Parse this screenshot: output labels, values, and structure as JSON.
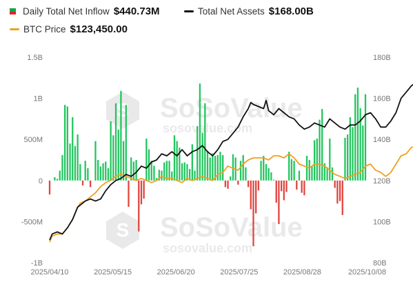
{
  "legend": {
    "inflow": {
      "label": "Daily Total Net Inflow",
      "value": "$440.73M"
    },
    "assets": {
      "label": "Total Net Assets",
      "value": "$168.00B"
    },
    "btc": {
      "label": "BTC Price",
      "value": "$123,450.00"
    }
  },
  "watermark": {
    "brand": "SoSoValue",
    "url": "sosovalue.com"
  },
  "colors": {
    "positive": "#22c55e",
    "negative": "#e0443e",
    "assets_line": "#111111",
    "btc_line": "#f0a020",
    "marker": "#f5c518"
  },
  "chart_data": {
    "type": "bar",
    "x_tick_labels": [
      "2025/04/10",
      "2025/05/15",
      "2025/06/20",
      "2025/07/25",
      "2025/08/28",
      "2025/10/08"
    ],
    "y_left": {
      "ticks": [
        "1.5B",
        "1B",
        "500M",
        "0",
        "-500M",
        "-1B"
      ],
      "range": [
        -1000,
        1500
      ],
      "unit": "M USD"
    },
    "y_right": {
      "ticks": [
        "180B",
        "160B",
        "140B",
        "120B",
        "100B",
        "80B"
      ],
      "range": [
        80,
        180
      ],
      "unit": "B USD"
    },
    "grid": false,
    "series": [
      {
        "name": "Daily Total Net Inflow",
        "kind": "bar",
        "values": [
          -170,
          0,
          40,
          20,
          120,
          310,
          920,
          900,
          450,
          770,
          420,
          560,
          200,
          -60,
          240,
          150,
          -80,
          0,
          480,
          250,
          170,
          210,
          230,
          150,
          720,
          550,
          940,
          620,
          1090,
          480,
          920,
          -320,
          280,
          230,
          250,
          -620,
          -290,
          -220,
          510,
          380,
          240,
          180,
          30,
          130,
          120,
          220,
          240,
          240,
          110,
          550,
          480,
          400,
          210,
          220,
          200,
          140,
          440,
          120,
          660,
          1180,
          580,
          940,
          360,
          280,
          330,
          300,
          310,
          350,
          310,
          -80,
          -100,
          50,
          320,
          280,
          -50,
          240,
          310,
          160,
          -80,
          -350,
          -800,
          -400,
          -120,
          240,
          300,
          200,
          150,
          100,
          10,
          -270,
          -530,
          -130,
          -240,
          -140,
          350,
          260,
          240,
          -110,
          120,
          -150,
          -180,
          300,
          250,
          180,
          490,
          510,
          740,
          870,
          210,
          160,
          510,
          160,
          -90,
          -280,
          -250,
          -420,
          520,
          560,
          770,
          650,
          1050,
          1130,
          880,
          670,
          1050
        ]
      },
      {
        "name": "Total Net Assets",
        "kind": "line",
        "axis": "right",
        "values": [
          [
            0,
            91
          ],
          [
            1,
            94
          ],
          [
            3,
            95
          ],
          [
            5,
            94
          ],
          [
            7,
            97
          ],
          [
            9,
            101
          ],
          [
            11,
            107
          ],
          [
            12,
            108
          ],
          [
            14,
            110
          ],
          [
            16,
            111
          ],
          [
            18,
            110
          ],
          [
            20,
            111
          ],
          [
            22,
            115
          ],
          [
            24,
            118
          ],
          [
            26,
            120
          ],
          [
            28,
            121
          ],
          [
            30,
            123
          ],
          [
            32,
            122
          ],
          [
            34,
            124
          ],
          [
            36,
            127
          ],
          [
            38,
            126
          ],
          [
            40,
            129
          ],
          [
            42,
            130
          ],
          [
            44,
            133
          ],
          [
            46,
            132
          ],
          [
            48,
            134
          ],
          [
            50,
            132
          ],
          [
            52,
            135
          ],
          [
            54,
            132
          ],
          [
            56,
            134
          ],
          [
            58,
            135
          ],
          [
            60,
            137
          ],
          [
            62,
            134
          ],
          [
            64,
            132
          ],
          [
            66,
            135
          ],
          [
            68,
            139
          ],
          [
            70,
            140
          ],
          [
            72,
            143
          ],
          [
            74,
            146
          ],
          [
            76,
            151
          ],
          [
            78,
            155
          ],
          [
            79,
            158
          ],
          [
            80,
            157
          ],
          [
            82,
            156
          ],
          [
            84,
            155
          ],
          [
            85,
            159
          ],
          [
            86,
            154
          ],
          [
            88,
            152
          ],
          [
            90,
            155
          ],
          [
            92,
            153
          ],
          [
            94,
            151
          ],
          [
            96,
            150
          ],
          [
            98,
            147
          ],
          [
            100,
            145
          ],
          [
            102,
            146
          ],
          [
            104,
            148
          ],
          [
            106,
            147
          ],
          [
            108,
            146
          ],
          [
            110,
            150
          ],
          [
            112,
            148
          ],
          [
            114,
            146
          ],
          [
            116,
            145
          ],
          [
            118,
            147
          ],
          [
            120,
            147
          ],
          [
            122,
            149
          ],
          [
            124,
            152
          ],
          [
            126,
            153
          ],
          [
            128,
            150
          ],
          [
            130,
            146
          ],
          [
            132,
            146
          ],
          [
            134,
            149
          ],
          [
            136,
            153
          ],
          [
            138,
            160
          ],
          [
            140,
            163
          ],
          [
            142,
            166
          ],
          [
            144,
            168
          ],
          [
            145,
            167
          ],
          [
            147,
            168
          ]
        ]
      },
      {
        "name": "BTC Price",
        "kind": "line",
        "axis": "right",
        "values": [
          [
            0,
            90
          ],
          [
            1,
            93
          ],
          [
            3,
            94
          ],
          [
            5,
            94
          ],
          [
            7,
            97
          ],
          [
            9,
            101
          ],
          [
            11,
            107
          ],
          [
            12,
            109
          ],
          [
            14,
            110
          ],
          [
            16,
            112
          ],
          [
            18,
            114
          ],
          [
            20,
            117
          ],
          [
            22,
            119
          ],
          [
            24,
            120
          ],
          [
            26,
            122
          ],
          [
            28,
            123
          ],
          [
            30,
            122
          ],
          [
            32,
            121
          ],
          [
            34,
            120
          ],
          [
            36,
            121
          ],
          [
            38,
            120
          ],
          [
            40,
            119
          ],
          [
            42,
            120
          ],
          [
            44,
            122
          ],
          [
            46,
            121
          ],
          [
            48,
            121
          ],
          [
            50,
            120
          ],
          [
            52,
            119
          ],
          [
            54,
            121
          ],
          [
            56,
            120
          ],
          [
            58,
            121
          ],
          [
            60,
            122
          ],
          [
            62,
            121
          ],
          [
            64,
            120
          ],
          [
            66,
            123
          ],
          [
            68,
            124
          ],
          [
            70,
            127
          ],
          [
            72,
            126
          ],
          [
            74,
            125
          ],
          [
            76,
            128
          ],
          [
            78,
            130
          ],
          [
            80,
            131
          ],
          [
            82,
            131
          ],
          [
            84,
            131
          ],
          [
            86,
            130
          ],
          [
            88,
            132
          ],
          [
            90,
            132
          ],
          [
            92,
            131
          ],
          [
            94,
            133
          ],
          [
            96,
            131
          ],
          [
            98,
            128
          ],
          [
            100,
            127
          ],
          [
            102,
            126
          ],
          [
            104,
            128
          ],
          [
            106,
            128
          ],
          [
            108,
            127
          ],
          [
            110,
            125
          ],
          [
            112,
            123
          ],
          [
            114,
            122
          ],
          [
            116,
            121
          ],
          [
            118,
            122
          ],
          [
            120,
            123
          ],
          [
            122,
            124
          ],
          [
            124,
            127
          ],
          [
            126,
            128
          ],
          [
            128,
            125
          ],
          [
            130,
            124
          ],
          [
            132,
            122
          ],
          [
            134,
            124
          ],
          [
            136,
            128
          ],
          [
            138,
            132
          ],
          [
            140,
            133
          ],
          [
            142,
            136
          ],
          [
            144,
            137
          ],
          [
            147,
            135
          ]
        ]
      }
    ],
    "current_marker": {
      "series": "BTC Price",
      "index": 147
    }
  }
}
